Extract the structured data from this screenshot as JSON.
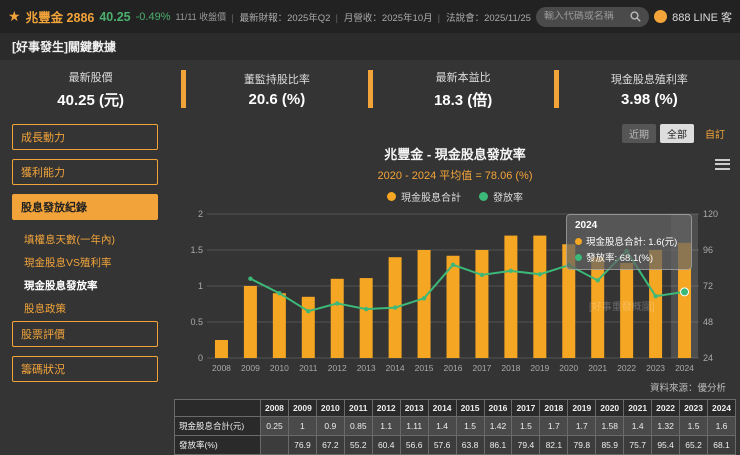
{
  "topbar": {
    "stock_label": "兆豐金 2886",
    "price": "40.25",
    "change": "-0.49%",
    "price_note": "11/11 收盤價",
    "info_items": [
      "最新財報：2025年Q2",
      "月營收：2025年10月",
      "法說會：2025/11/25"
    ],
    "search_placeholder": "輸入代碼或名稱",
    "line_label": "888 LINE 客"
  },
  "page_title": "[好事發生]關鍵數據",
  "metrics": [
    {
      "label": "最新股價",
      "value": "40.25",
      "unit": "(元)"
    },
    {
      "label": "董監持股比率",
      "value": "20.6",
      "unit": "(%)"
    },
    {
      "label": "最新本益比",
      "value": "18.3",
      "unit": "(倍)"
    },
    {
      "label": "現金股息殖利率",
      "value": "3.98",
      "unit": "(%)"
    }
  ],
  "sidebar": {
    "items": [
      {
        "label": "成長動力",
        "style": "button",
        "active": false
      },
      {
        "label": "獲利能力",
        "style": "button",
        "active": false
      },
      {
        "label": "股息發放紀錄",
        "style": "button",
        "active": true
      },
      {
        "label": "填權息天數(一年內)",
        "style": "sub",
        "active": false
      },
      {
        "label": "現金股息VS殖利率",
        "style": "sub",
        "active": false
      },
      {
        "label": "現金股息發放率",
        "style": "sub",
        "active": true
      },
      {
        "label": "股息政策",
        "style": "sub",
        "active": false
      },
      {
        "label": "股票評價",
        "style": "button",
        "active": false
      },
      {
        "label": "籌碼狀況",
        "style": "button",
        "active": false
      }
    ]
  },
  "range_buttons": [
    {
      "label": "近期",
      "state": "default"
    },
    {
      "label": "全部",
      "state": "selected"
    },
    {
      "label": "自訂",
      "state": "accent"
    }
  ],
  "chart_data": {
    "type": "bar",
    "title": "兆豐金 - 現金股息發放率",
    "subtitle": "2020 - 2024 平均值 = 78.06 (%)",
    "categories": [
      "2008",
      "2009",
      "2010",
      "2011",
      "2012",
      "2013",
      "2014",
      "2015",
      "2016",
      "2017",
      "2018",
      "2019",
      "2020",
      "2021",
      "2022",
      "2023",
      "2024"
    ],
    "series": [
      {
        "name": "現金股息合計",
        "type": "bar",
        "unit": "元",
        "color": "#F5A623",
        "values": [
          0.25,
          1,
          0.9,
          0.85,
          1.1,
          1.11,
          1.4,
          1.5,
          1.42,
          1.5,
          1.7,
          1.7,
          1.58,
          1.4,
          1.32,
          1.5,
          1.6
        ]
      },
      {
        "name": "發放率",
        "type": "line",
        "unit": "%",
        "color": "#3CB878",
        "values": [
          null,
          76.9,
          67.2,
          55.2,
          60.4,
          56.6,
          57.6,
          63.8,
          86.1,
          79.4,
          82.1,
          79.8,
          85.9,
          75.7,
          95.4,
          65.2,
          68.1
        ]
      }
    ],
    "y_left": {
      "min": 0,
      "max": 2,
      "ticks": [
        0,
        0.5,
        1,
        1.5,
        2
      ]
    },
    "y_right": {
      "min": 24,
      "max": 120,
      "ticks": [
        24,
        48,
        72,
        96,
        120
      ]
    },
    "legend_position": "top",
    "grid": true,
    "highlighted_category": "2024"
  },
  "tooltip": {
    "year": "2024",
    "items": [
      {
        "label": "現金股息合計",
        "value": "1.6(元)",
        "color": "#F5A623"
      },
      {
        "label": "發放率",
        "value": "68.1(%)",
        "color": "#3CB878"
      }
    ]
  },
  "watermark": "[好事重發概圍]",
  "source": "資料來源：優分析",
  "table": {
    "year_headers": [
      "2008",
      "2009",
      "2010",
      "2011",
      "2012",
      "2013",
      "2014",
      "2015",
      "2016",
      "2017",
      "2018",
      "2019",
      "2020",
      "2021",
      "2022",
      "2023",
      "2024"
    ],
    "rows": [
      {
        "label": "現金股息合計(元)",
        "values": [
          "0.25",
          "1",
          "0.9",
          "0.85",
          "1.1",
          "1.11",
          "1.4",
          "1.5",
          "1.42",
          "1.5",
          "1.7",
          "1.7",
          "1.58",
          "1.4",
          "1.32",
          "1.5",
          "1.6"
        ]
      },
      {
        "label": "發放率(%)",
        "values": [
          "",
          "76.9",
          "67.2",
          "55.2",
          "60.4",
          "56.6",
          "57.6",
          "63.8",
          "86.1",
          "79.4",
          "82.1",
          "79.8",
          "85.9",
          "75.7",
          "95.4",
          "65.2",
          "68.1"
        ]
      }
    ]
  },
  "colors": {
    "accent": "#F2A43A",
    "bar": "#F5A623",
    "line": "#3CB878",
    "change_green": "#4CAF6E"
  }
}
